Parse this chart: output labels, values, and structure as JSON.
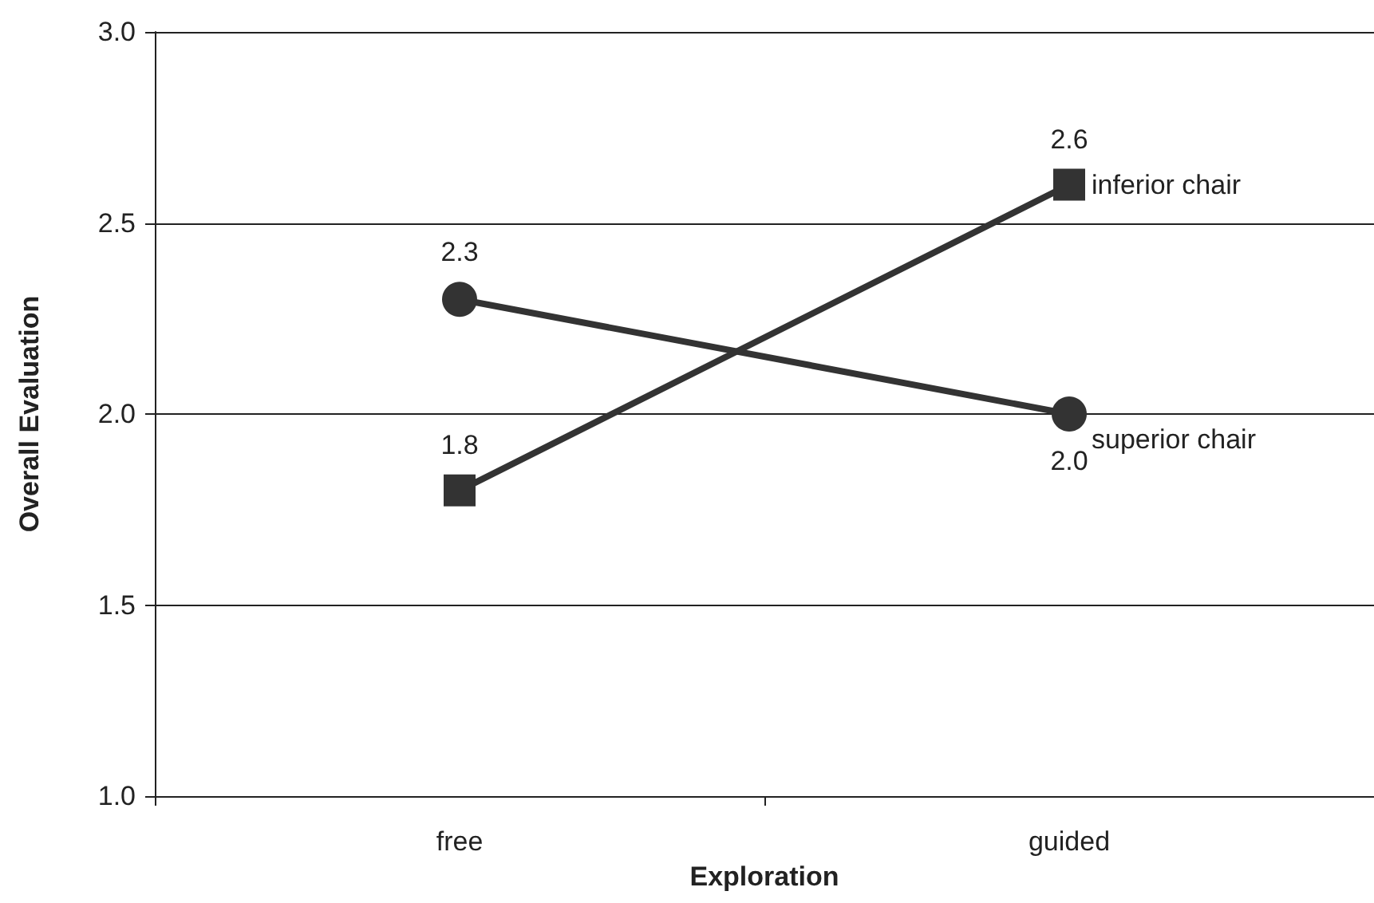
{
  "chart_data": {
    "type": "line",
    "xlabel": "Exploration",
    "ylabel": "Overall Evaluation",
    "categories": [
      "free",
      "guided"
    ],
    "series": [
      {
        "name": "superior chair",
        "color": "#333333",
        "marker": "circle",
        "values": [
          2.3,
          2.0
        ],
        "value_labels": [
          "2.3",
          "2.0"
        ]
      },
      {
        "name": "inferior chair",
        "color": "#333333",
        "marker": "square",
        "values": [
          1.8,
          2.6
        ],
        "value_labels": [
          "1.8",
          "2.6"
        ]
      }
    ],
    "ylim": [
      1.0,
      3.0
    ],
    "yticks": [
      {
        "value": 1,
        "label": "1.0"
      },
      {
        "value": 1.5,
        "label": "1.5"
      },
      {
        "value": 2,
        "label": "2.0"
      },
      {
        "value": 2.5,
        "label": "2.5"
      },
      {
        "value": 3,
        "label": "3.0"
      }
    ],
    "grid": "y",
    "legend": false,
    "line_style": "solid"
  }
}
